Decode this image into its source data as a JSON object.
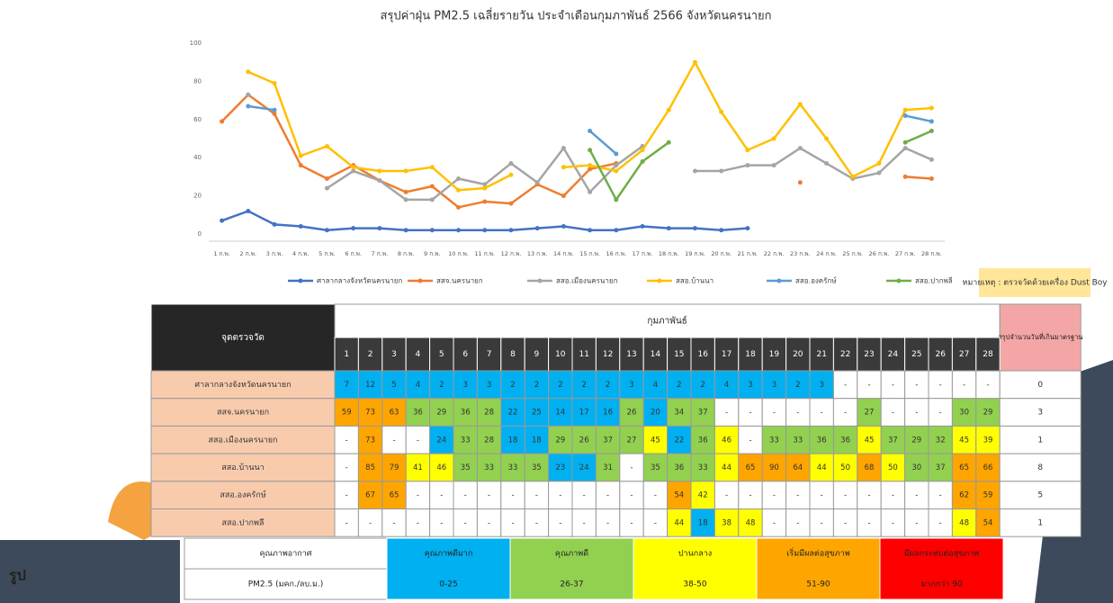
{
  "chart_data": {
    "type": "line",
    "title": "สรุปค่าฝุ่น PM2.5 เฉลี่ยรายวัน ประจำเดือนกุมภาพันธ์ 2566 จังหวัดนครนายก",
    "categories": [
      "1 ก.พ.",
      "2 ก.พ.",
      "3 ก.พ.",
      "4 ก.พ.",
      "5 ก.พ.",
      "6 ก.พ.",
      "7 ก.พ.",
      "8 ก.พ.",
      "9 ก.พ.",
      "10 ก.พ.",
      "11 ก.พ.",
      "12 ก.พ.",
      "13 ก.พ.",
      "14 ก.พ.",
      "15 ก.พ.",
      "16 ก.พ.",
      "17 ก.พ.",
      "18 ก.พ.",
      "19 ก.พ.",
      "20 ก.พ.",
      "21 ก.พ.",
      "22 ก.พ.",
      "23 ก.พ.",
      "24 ก.พ.",
      "25 ก.พ.",
      "26 ก.พ.",
      "27 ก.พ.",
      "28 ก.พ."
    ],
    "series": [
      {
        "name": "ศาลากลางจังหวัดนครนายก",
        "color": "#4472c4",
        "values": [
          7,
          12,
          5,
          4,
          2,
          3,
          3,
          2,
          2,
          2,
          2,
          2,
          3,
          4,
          2,
          2,
          4,
          3,
          3,
          2,
          3,
          null,
          null,
          null,
          null,
          null,
          null,
          null
        ]
      },
      {
        "name": "สสจ.นครนายก",
        "color": "#ed7d31",
        "values": [
          59,
          73,
          63,
          36,
          29,
          36,
          28,
          22,
          25,
          14,
          17,
          16,
          26,
          20,
          34,
          37,
          null,
          null,
          null,
          null,
          null,
          null,
          27,
          null,
          null,
          null,
          30,
          29
        ]
      },
      {
        "name": "สสอ.เมืองนครนายก",
        "color": "#a5a5a5",
        "values": [
          null,
          73,
          null,
          null,
          24,
          33,
          28,
          18,
          18,
          29,
          26,
          37,
          27,
          45,
          22,
          36,
          46,
          null,
          33,
          33,
          36,
          36,
          45,
          37,
          29,
          32,
          45,
          39
        ]
      },
      {
        "name": "สสอ.บ้านนา",
        "color": "#ffc000",
        "values": [
          null,
          85,
          79,
          41,
          46,
          35,
          33,
          33,
          35,
          23,
          24,
          31,
          null,
          35,
          36,
          33,
          44,
          65,
          90,
          64,
          44,
          50,
          68,
          50,
          30,
          37,
          65,
          66
        ]
      },
      {
        "name": "สสอ.องครักษ์",
        "color": "#5b9bd5",
        "values": [
          null,
          67,
          65,
          null,
          null,
          null,
          null,
          null,
          null,
          null,
          null,
          null,
          null,
          null,
          54,
          42,
          null,
          null,
          null,
          null,
          null,
          null,
          null,
          null,
          null,
          null,
          62,
          59
        ]
      },
      {
        "name": "สสอ.ปากพลี",
        "color": "#70ad47",
        "values": [
          null,
          null,
          null,
          null,
          null,
          null,
          null,
          null,
          null,
          null,
          null,
          null,
          null,
          null,
          44,
          18,
          38,
          48,
          null,
          null,
          null,
          null,
          null,
          null,
          null,
          null,
          48,
          54
        ]
      }
    ],
    "ylim": [
      0,
      100
    ],
    "yticks": [
      0,
      20,
      40,
      60,
      80,
      100
    ],
    "grid": false,
    "legend": "bottom",
    "note": "หมายเหตุ : ตรวจวัดด้วยเครื่อง Dust Boy"
  },
  "table": {
    "station_header": "จุดตรวจวัด",
    "month_header": "กุมภาพันธ์",
    "summary_header": "สรุปจำนวนวันที่เกินมาตรฐาน",
    "days": [
      1,
      2,
      3,
      4,
      5,
      6,
      7,
      8,
      9,
      10,
      11,
      12,
      13,
      14,
      15,
      16,
      17,
      18,
      19,
      20,
      21,
      22,
      23,
      24,
      25,
      26,
      27,
      28
    ],
    "missing": "-",
    "exceed_days": [
      0,
      3,
      1,
      8,
      5,
      1
    ]
  },
  "levels": {
    "quality_header": "คุณภาพอากาศ",
    "pm_header": "PM2.5 (มคก./ลบ.ม.)",
    "items": [
      {
        "name": "คุณภาพดีมาก",
        "range": "0-25",
        "color": "#00b0f0"
      },
      {
        "name": "คุณภาพดี",
        "range": "26-37",
        "color": "#92d050"
      },
      {
        "name": "ปานกลาง",
        "range": "38-50",
        "color": "#ffff00"
      },
      {
        "name": "เริ่มมีผลต่อสุขภาพ",
        "range": "51-90",
        "color": "#ffa500"
      },
      {
        "name": "มีผลกระทบต่อสุขภาพ",
        "range": "มากกว่า 90",
        "color": "#ff0000"
      }
    ]
  },
  "caption": "รูป"
}
